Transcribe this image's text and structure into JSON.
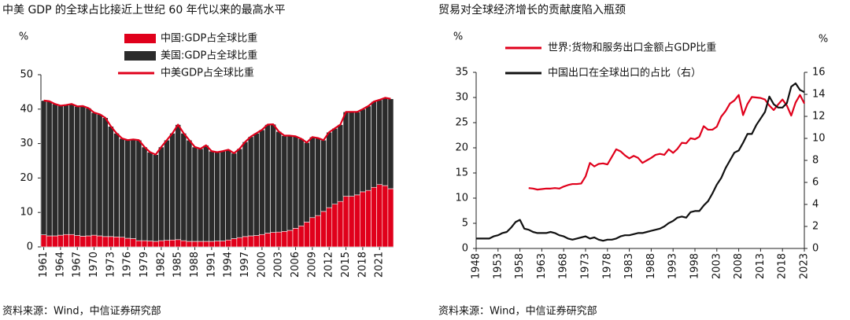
{
  "chart_data": [
    {
      "type": "bar",
      "stacked": true,
      "title": "中美 GDP 的全球占比接近上世纪 60 年代以来的最高水平",
      "y_unit": "%",
      "source": "资料来源：Wind，中信证券研究部",
      "categories": [
        "1961",
        null,
        null,
        "1964",
        null,
        null,
        "1967",
        null,
        null,
        "1970",
        null,
        null,
        "1973",
        null,
        null,
        "1976",
        null,
        null,
        "1979",
        null,
        null,
        "1982",
        null,
        null,
        "1985",
        null,
        null,
        "1988",
        null,
        null,
        "1991",
        null,
        null,
        "1994",
        null,
        null,
        "1997",
        null,
        null,
        "2000",
        null,
        null,
        "2003",
        null,
        null,
        "2006",
        null,
        null,
        "2009",
        null,
        null,
        "2012",
        null,
        null,
        "2015",
        null,
        null,
        "2018",
        null,
        null,
        "2021",
        null,
        null
      ],
      "series": [
        {
          "name": "中国:GDP占全球比重",
          "color": "#e0001b",
          "values": [
            3.5,
            3.2,
            3.2,
            3.4,
            3.6,
            3.6,
            3.3,
            3.1,
            3.2,
            3.4,
            3.2,
            3.0,
            3.0,
            2.9,
            2.8,
            2.5,
            2.4,
            1.8,
            1.8,
            1.7,
            1.6,
            1.8,
            1.9,
            2.0,
            2.1,
            1.8,
            1.6,
            1.6,
            1.6,
            1.6,
            1.6,
            1.7,
            1.7,
            2.0,
            2.4,
            2.7,
            3.0,
            3.2,
            3.3,
            3.6,
            4.0,
            4.2,
            4.3,
            4.5,
            4.8,
            5.4,
            6.1,
            7.2,
            8.5,
            9.1,
            10.3,
            11.4,
            12.4,
            13.2,
            14.7,
            14.7,
            15.1,
            16.0,
            16.4,
            17.3,
            18.1,
            17.8,
            16.9
          ]
        },
        {
          "name": "美国:GDP占全球比重",
          "color": "#2b2b2b",
          "values": [
            39.0,
            39.1,
            38.3,
            37.6,
            37.6,
            37.9,
            37.5,
            37.8,
            37.1,
            35.6,
            35.3,
            34.5,
            32.0,
            30.1,
            28.7,
            28.5,
            28.8,
            29.2,
            27.2,
            25.8,
            25.2,
            27.2,
            29.1,
            31.0,
            33.4,
            31.2,
            29.4,
            27.4,
            26.9,
            27.9,
            26.2,
            25.8,
            26.1,
            26.2,
            24.8,
            25.8,
            27.5,
            28.8,
            29.7,
            30.4,
            31.5,
            31.4,
            29.2,
            27.8,
            27.5,
            26.7,
            25.3,
            23.1,
            23.4,
            22.5,
            20.7,
            21.9,
            22.0,
            22.3,
            24.5,
            24.5,
            24.1,
            24.0,
            24.5,
            24.9,
            24.6,
            25.5,
            26.1
          ]
        },
        {
          "name": "中美GDP占全球比重",
          "type": "line",
          "color": "#e0001b",
          "values": [
            42.5,
            42.3,
            41.5,
            41.0,
            41.2,
            41.5,
            40.8,
            40.9,
            40.3,
            39.0,
            38.5,
            37.5,
            35.0,
            33.0,
            31.5,
            31.0,
            31.2,
            31.0,
            29.0,
            27.5,
            26.8,
            29.0,
            31.0,
            33.0,
            35.5,
            33.0,
            31.0,
            29.0,
            28.5,
            29.5,
            27.8,
            27.5,
            27.8,
            28.2,
            27.2,
            28.5,
            30.5,
            32.0,
            33.0,
            34.0,
            35.5,
            35.6,
            33.5,
            32.3,
            32.3,
            32.1,
            31.4,
            30.3,
            31.9,
            31.6,
            31.0,
            33.3,
            34.4,
            35.5,
            39.2,
            39.2,
            39.2,
            40.0,
            40.9,
            42.2,
            42.7,
            43.3,
            43.0
          ]
        }
      ],
      "ylim": [
        0,
        50
      ],
      "yticks": [
        0,
        10,
        20,
        30,
        40,
        50
      ],
      "grid": false
    },
    {
      "type": "line",
      "title": "贸易对全球经济增长的贡献度陷入瓶颈",
      "y_unit": "%",
      "y2_unit": "%",
      "source": "资料来源：Wind，中信证券研究部",
      "x": [
        1948,
        1949,
        1950,
        1951,
        1952,
        1953,
        1954,
        1955,
        1956,
        1957,
        1958,
        1959,
        1960,
        1961,
        1962,
        1963,
        1964,
        1965,
        1966,
        1967,
        1968,
        1969,
        1970,
        1971,
        1972,
        1973,
        1974,
        1975,
        1976,
        1977,
        1978,
        1979,
        1980,
        1981,
        1982,
        1983,
        1984,
        1985,
        1986,
        1987,
        1988,
        1989,
        1990,
        1991,
        1992,
        1993,
        1994,
        1995,
        1996,
        1997,
        1998,
        1999,
        2000,
        2001,
        2002,
        2003,
        2004,
        2005,
        2006,
        2007,
        2008,
        2009,
        2010,
        2011,
        2012,
        2013,
        2014,
        2015,
        2016,
        2017,
        2018,
        2019,
        2020,
        2021,
        2022,
        2023
      ],
      "series": [
        {
          "name": "世界:货物和服务出口金额占GDP比重",
          "color": "#e0001b",
          "values": [
            null,
            null,
            null,
            null,
            null,
            null,
            null,
            null,
            null,
            null,
            null,
            null,
            12.0,
            11.9,
            11.7,
            11.8,
            11.9,
            11.9,
            12.0,
            11.9,
            12.3,
            12.6,
            12.8,
            12.8,
            12.9,
            14.3,
            17.0,
            16.3,
            16.8,
            16.9,
            16.7,
            18.2,
            19.7,
            19.3,
            18.5,
            17.9,
            18.4,
            18.0,
            17.0,
            17.5,
            18.0,
            18.6,
            18.8,
            18.6,
            19.7,
            19.0,
            19.8,
            21.0,
            20.9,
            21.9,
            21.7,
            22.2,
            24.3,
            23.6,
            23.6,
            24.2,
            26.2,
            27.3,
            28.8,
            29.4,
            30.5,
            26.5,
            28.7,
            30.1,
            30.0,
            29.9,
            29.6,
            28.4,
            27.5,
            28.6,
            29.6,
            28.4,
            26.4,
            29.0,
            30.5,
            28.8
          ]
        },
        {
          "name": "中国出口在全球出口的占比（右）",
          "color": "#111111",
          "axis": "y2",
          "values": [
            0.9,
            0.9,
            0.9,
            0.9,
            1.1,
            1.2,
            1.4,
            1.5,
            1.9,
            2.4,
            2.6,
            1.8,
            1.7,
            1.5,
            1.4,
            1.4,
            1.4,
            1.5,
            1.4,
            1.2,
            1.1,
            0.9,
            0.8,
            0.9,
            1.0,
            1.1,
            0.9,
            1.0,
            0.8,
            0.7,
            0.8,
            0.8,
            0.9,
            1.1,
            1.2,
            1.2,
            1.3,
            1.4,
            1.4,
            1.5,
            1.6,
            1.7,
            1.8,
            2.0,
            2.3,
            2.5,
            2.8,
            2.9,
            2.8,
            3.3,
            3.4,
            3.4,
            3.9,
            4.3,
            5.0,
            5.8,
            6.4,
            7.3,
            8.0,
            8.7,
            8.9,
            9.6,
            10.4,
            10.4,
            11.2,
            11.8,
            12.4,
            13.8,
            13.1,
            12.8,
            12.8,
            13.2,
            14.7,
            15.0,
            14.4,
            14.2
          ]
        }
      ],
      "xlim": [
        1948,
        2023
      ],
      "xticks": [
        1948,
        1953,
        1958,
        1963,
        1968,
        1973,
        1978,
        1983,
        1988,
        1993,
        1998,
        2003,
        2008,
        2013,
        2018,
        2023
      ],
      "ylim": [
        0,
        35
      ],
      "yticks": [
        0,
        5,
        10,
        15,
        20,
        25,
        30,
        35
      ],
      "y2lim": [
        0,
        16
      ],
      "y2ticks": [
        0,
        2,
        4,
        6,
        8,
        10,
        12,
        14,
        16
      ],
      "grid": false
    }
  ]
}
